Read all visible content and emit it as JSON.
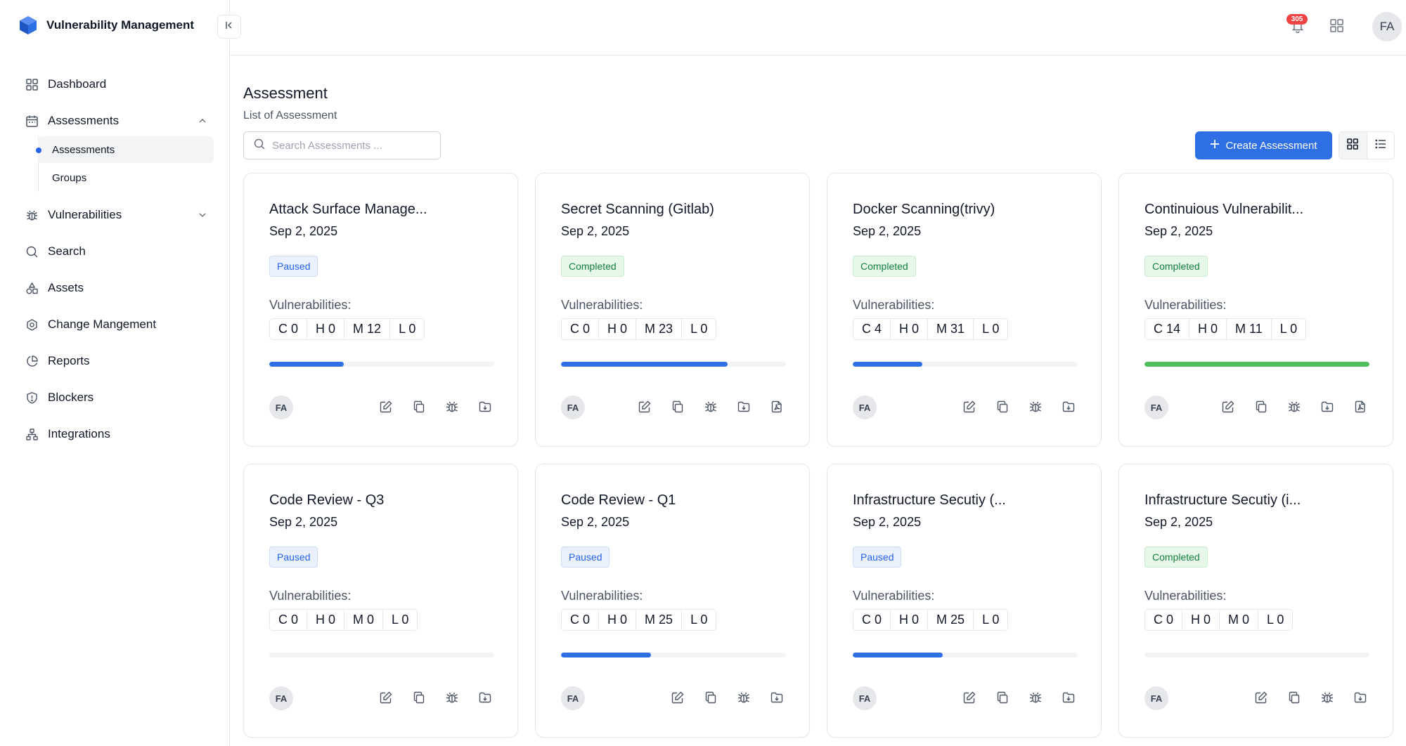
{
  "app": {
    "title": "Vulnerability Management"
  },
  "sidebar": {
    "items": [
      {
        "label": "Dashboard",
        "icon": "dashboard-icon"
      },
      {
        "label": "Assessments",
        "icon": "calendar-icon",
        "expanded": true
      },
      {
        "label": "Vulnerabilities",
        "icon": "bug-icon",
        "expanded": false
      },
      {
        "label": "Search",
        "icon": "search-icon"
      },
      {
        "label": "Assets",
        "icon": "shapes-icon"
      },
      {
        "label": "Change Mangement",
        "icon": "hexagon-icon"
      },
      {
        "label": "Reports",
        "icon": "pie-chart-icon"
      },
      {
        "label": "Blockers",
        "icon": "shield-icon"
      },
      {
        "label": "Integrations",
        "icon": "network-icon"
      }
    ],
    "subitems": [
      {
        "label": "Assessments",
        "active": true
      },
      {
        "label": "Groups",
        "active": false
      }
    ]
  },
  "header": {
    "notification_count": "305",
    "avatar_initials": "FA"
  },
  "main": {
    "title": "Assessment",
    "subtitle": "List of Assessment",
    "search_placeholder": "Search Assessments ...",
    "create_label": "Create Assessment",
    "vuln_label": "Vulnerabilities:"
  },
  "colors": {
    "accent": "#2f6fe4",
    "complete": "#4cc05a",
    "paused_bg": "#eaf1fd",
    "completed_bg": "#e7f7ea"
  },
  "cards": [
    {
      "title": "Attack Surface Manage...",
      "date": "Sep 2, 2025",
      "status": "Paused",
      "sev": [
        "C 0",
        "H 0",
        "M 12",
        "L 0"
      ],
      "progress": 0.33,
      "owner": "FA",
      "report": false
    },
    {
      "title": "Secret Scanning (Gitlab)",
      "date": "Sep 2, 2025",
      "status": "Completed",
      "sev": [
        "C 0",
        "H 0",
        "M 23",
        "L 0"
      ],
      "progress": 0.74,
      "owner": "FA",
      "report": true
    },
    {
      "title": "Docker Scanning(trivy)",
      "date": "Sep 2, 2025",
      "status": "Completed",
      "sev": [
        "C 4",
        "H 0",
        "M 31",
        "L 0"
      ],
      "progress": 0.31,
      "owner": "FA",
      "report": false
    },
    {
      "title": "Continuious Vulnerabilit...",
      "date": "Sep 2, 2025",
      "status": "Completed",
      "sev": [
        "C 14",
        "H 0",
        "M 11",
        "L 0"
      ],
      "progress": 1.0,
      "owner": "FA",
      "report": true
    },
    {
      "title": "Code Review - Q3",
      "date": "Sep 2, 2025",
      "status": "Paused",
      "sev": [
        "C 0",
        "H 0",
        "M 0",
        "L 0"
      ],
      "progress": 0,
      "owner": "FA",
      "report": false
    },
    {
      "title": "Code Review - Q1",
      "date": "Sep 2, 2025",
      "status": "Paused",
      "sev": [
        "C 0",
        "H 0",
        "M 25",
        "L 0"
      ],
      "progress": 0.4,
      "owner": "FA",
      "report": false
    },
    {
      "title": "Infrastructure Secutiy (...",
      "date": "Sep 2, 2025",
      "status": "Paused",
      "sev": [
        "C 0",
        "H 0",
        "M 25",
        "L 0"
      ],
      "progress": 0.4,
      "owner": "FA",
      "report": false
    },
    {
      "title": "Infrastructure Secutiy (i...",
      "date": "Sep 2, 2025",
      "status": "Completed",
      "sev": [
        "C 0",
        "H 0",
        "M 0",
        "L 0"
      ],
      "progress": 0,
      "owner": "FA",
      "report": false
    }
  ]
}
